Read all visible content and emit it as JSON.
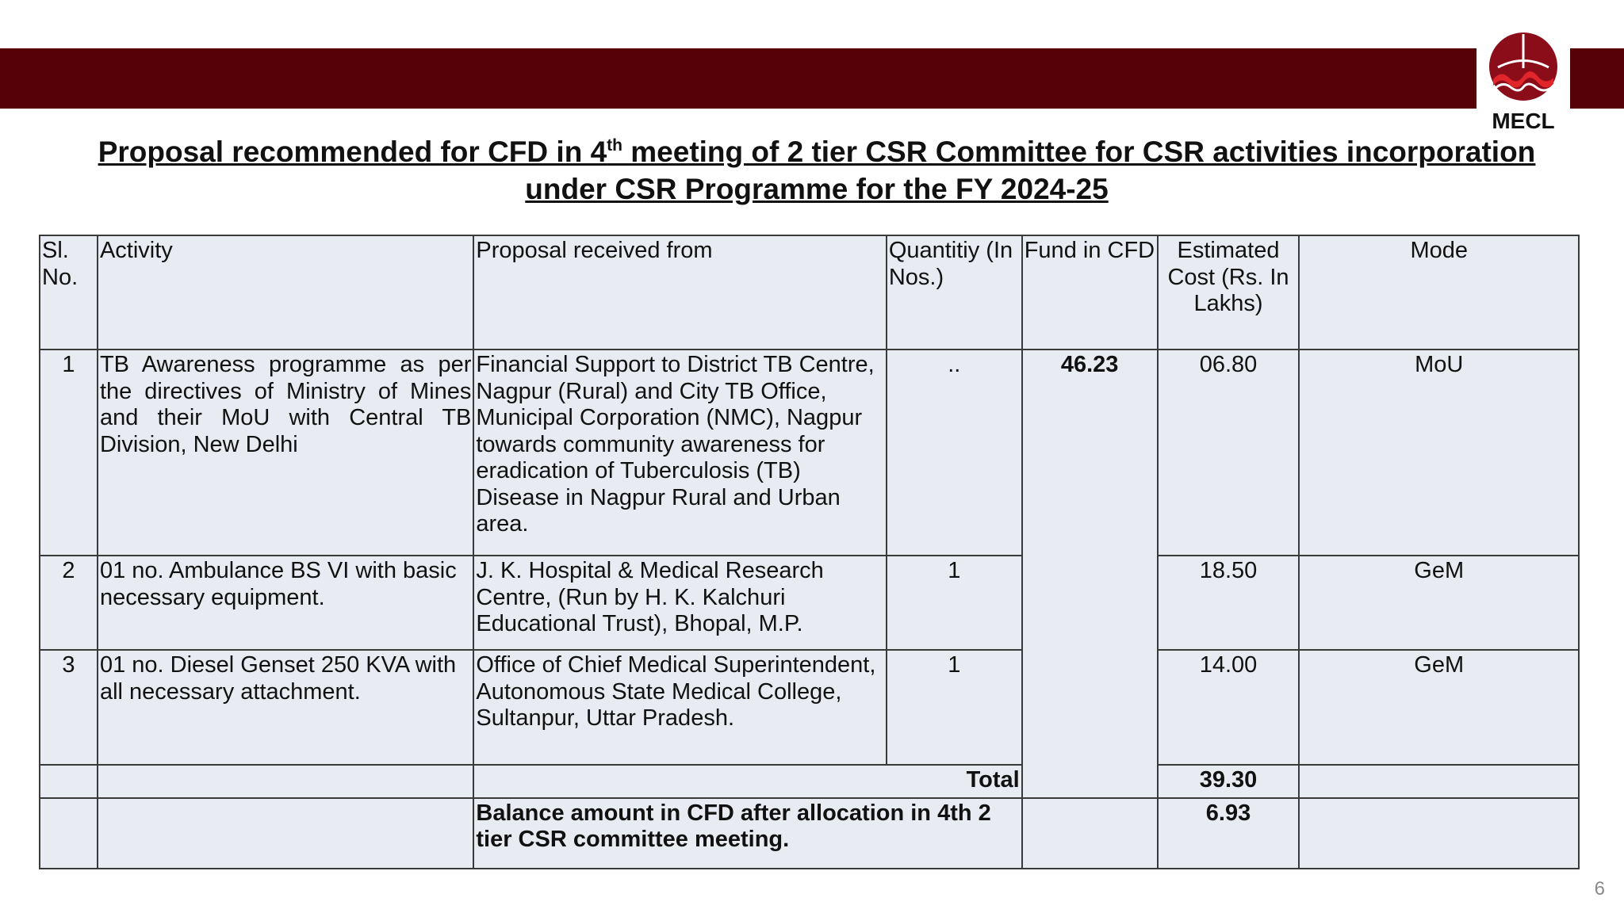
{
  "brand": {
    "logo_text": "MECL",
    "band_color": "#560008",
    "logo_color": "#8b0d1a",
    "logo_wave_color": "#e0252b"
  },
  "title": {
    "line1_before": "Proposal recommended for CFD in 4",
    "line1_sup": "th",
    "line1_after": " meeting of 2 tier CSR Committee for CSR activities incorporation",
    "line2": "under CSR Programme for the FY 2024-25"
  },
  "table": {
    "headers": {
      "sl": "Sl. No.",
      "activity": "Activity",
      "proposal": "Proposal received from",
      "quantity": "Quantitiy (In Nos.)",
      "fund": "Fund in CFD",
      "cost": "Estimated Cost (Rs. In Lakhs)",
      "mode": "Mode"
    },
    "fund_in_cfd": "46.23",
    "rows": [
      {
        "sl": "1",
        "activity": "TB Awareness programme as per the directives of Ministry of Mines and their MoU with Central TB Division, New Delhi",
        "proposal": "Financial Support to District TB Centre, Nagpur (Rural) and City TB Office, Municipal Corporation (NMC), Nagpur towards community awareness for eradication of Tuberculosis (TB) Disease in Nagpur Rural and Urban area.",
        "quantity": "..",
        "cost": "06.80",
        "mode": "MoU"
      },
      {
        "sl": "2",
        "activity": "01 no. Ambulance BS VI with basic necessary equipment.",
        "proposal": "J. K. Hospital & Medical Research Centre, (Run by H. K. Kalchuri Educational Trust), Bhopal, M.P.",
        "quantity": "1",
        "cost": "18.50",
        "mode": "GeM"
      },
      {
        "sl": "3",
        "activity": "01 no. Diesel Genset 250 KVA with all necessary attachment.",
        "proposal": "Office of Chief Medical Superintendent, Autonomous State Medical College, Sultanpur, Uttar Pradesh.",
        "quantity": "1",
        "cost": "14.00",
        "mode": "GeM"
      }
    ],
    "total_label": "Total",
    "total_value": "39.30",
    "balance_label": "Balance amount in CFD after allocation in 4th 2 tier CSR committee meeting.",
    "balance_value": "6.93"
  },
  "page_number": "6"
}
